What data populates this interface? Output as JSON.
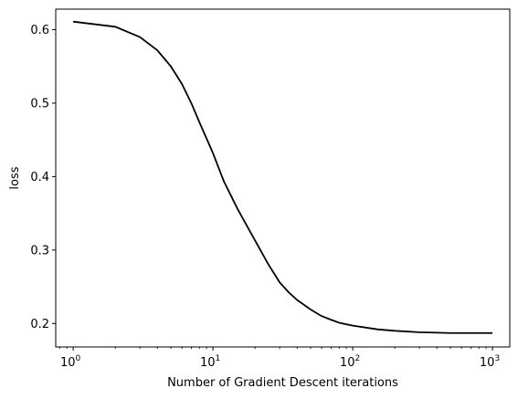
{
  "chart_data": {
    "type": "line",
    "title": "",
    "xlabel": "Number of Gradient Descent iterations",
    "ylabel": "loss",
    "xscale": "log",
    "xlim": [
      0.75,
      1330
    ],
    "ylim": [
      0.168,
      0.628
    ],
    "grid": false,
    "legend": "none",
    "line_color": "#000000",
    "x_ticks": [
      {
        "value": 1,
        "base": "10",
        "exp": "0"
      },
      {
        "value": 10,
        "base": "10",
        "exp": "1"
      },
      {
        "value": 100,
        "base": "10",
        "exp": "2"
      },
      {
        "value": 1000,
        "base": "10",
        "exp": "3"
      }
    ],
    "y_ticks": [
      {
        "value": 0.2,
        "label": "0.2"
      },
      {
        "value": 0.3,
        "label": "0.3"
      },
      {
        "value": 0.4,
        "label": "0.4"
      },
      {
        "value": 0.5,
        "label": "0.5"
      },
      {
        "value": 0.6,
        "label": "0.6"
      }
    ],
    "series": [
      {
        "x": [
          1,
          2,
          3,
          4,
          5,
          6,
          7,
          8,
          10,
          12,
          15,
          20,
          25,
          30,
          35,
          40,
          50,
          60,
          70,
          80,
          100,
          150,
          200,
          300,
          500,
          700,
          1000
        ],
        "y": [
          0.611,
          0.604,
          0.59,
          0.572,
          0.55,
          0.526,
          0.5,
          0.474,
          0.432,
          0.393,
          0.356,
          0.313,
          0.28,
          0.256,
          0.242,
          0.232,
          0.219,
          0.21,
          0.205,
          0.201,
          0.197,
          0.192,
          0.19,
          0.188,
          0.187,
          0.187,
          0.187
        ]
      }
    ]
  }
}
